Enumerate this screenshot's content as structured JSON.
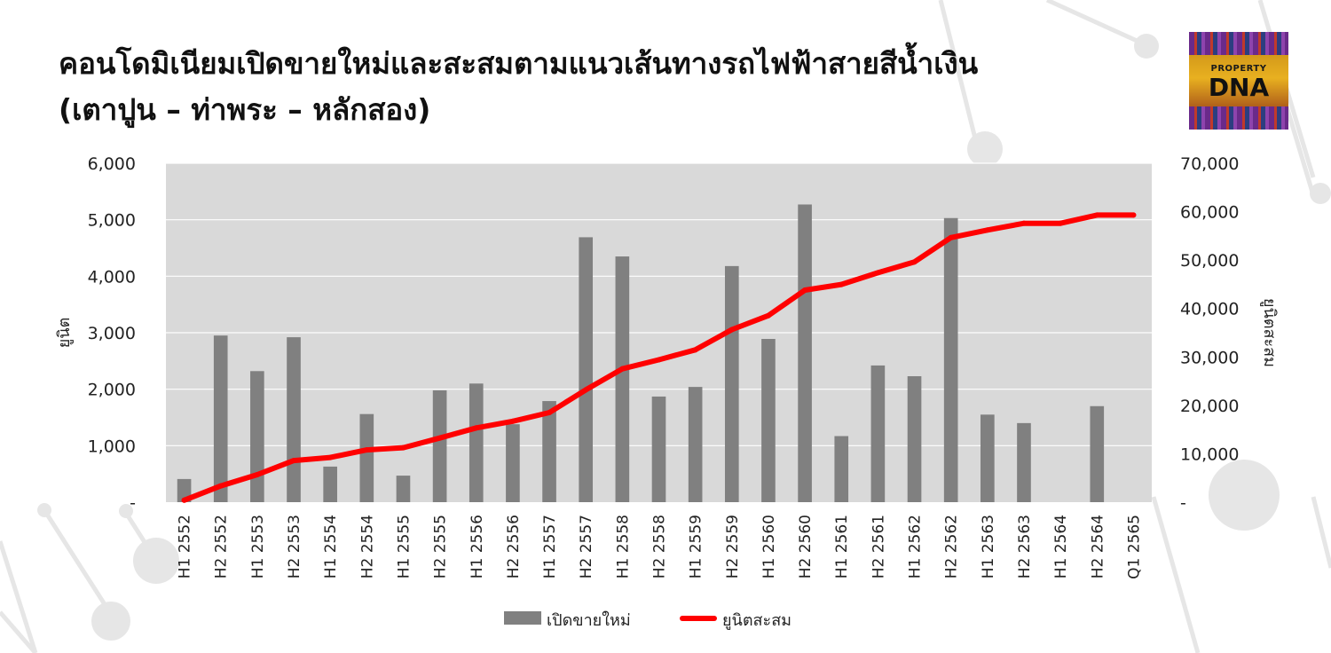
{
  "title": {
    "line1": "คอนโดมิเนียมเปิดขายใหม่และสะสมตามแนวเส้นทางรถไฟฟ้าสายสีน้ำเงิน",
    "line2": "(เตาปูน – ท่าพระ – หลักสอง)"
  },
  "logo": {
    "line1": "PROPERTY",
    "line2": "DNA"
  },
  "colors": {
    "plot_background": "#d9d9d9",
    "bar": "#808080",
    "line": "#ff0000",
    "gridline": "#ffffff",
    "text": "#222222"
  },
  "legend": {
    "bar_label": "เปิดขายใหม่",
    "line_label": "ยูนิตสะสม"
  },
  "chart_data": {
    "type": "bar",
    "combo": "bar+line",
    "categories": [
      "H1 2552",
      "H2 2552",
      "H1 2553",
      "H2 2553",
      "H1 2554",
      "H2 2554",
      "H1 2555",
      "H2 2555",
      "H1 2556",
      "H2 2556",
      "H1 2557",
      "H2 2557",
      "H1 2558",
      "H2 2558",
      "H1 2559",
      "H2 2559",
      "H1 2560",
      "H2 2560",
      "H1 2561",
      "H2 2561",
      "H1 2562",
      "H2 2562",
      "H1 2563",
      "H2 2563",
      "H1 2564",
      "H2 2564",
      "Q1 2565"
    ],
    "series": [
      {
        "name": "เปิดขายใหม่",
        "type": "bar",
        "axis": "left",
        "values": [
          410,
          2950,
          2320,
          2920,
          630,
          1560,
          470,
          1980,
          2100,
          1380,
          1790,
          4690,
          4350,
          1870,
          2040,
          4180,
          2890,
          5270,
          1170,
          2420,
          2230,
          5030,
          1550,
          1400,
          0,
          1700,
          0
        ]
      },
      {
        "name": "ยูนิตสะสม",
        "type": "line",
        "axis": "right",
        "values": [
          410,
          3360,
          5680,
          8600,
          9230,
          10790,
          11260,
          13240,
          15340,
          16720,
          18510,
          23200,
          27550,
          29420,
          31460,
          35640,
          38530,
          43800,
          44970,
          47390,
          49620,
          54650,
          56200,
          57600,
          57600,
          59300,
          59300
        ]
      }
    ],
    "y_left": {
      "label": "ยูนิต",
      "min": 0,
      "max": 6000,
      "step": 1000,
      "tick_labels": [
        "-",
        "1,000",
        "2,000",
        "3,000",
        "4,000",
        "5,000",
        "6,000"
      ]
    },
    "y_right": {
      "label": "ยูนิตสะสม",
      "min": 0,
      "max": 70000,
      "step": 10000,
      "tick_labels": [
        "-",
        "10,000",
        "20,000",
        "30,000",
        "40,000",
        "50,000",
        "60,000",
        "70,000"
      ]
    },
    "grid": true,
    "legend_position": "bottom"
  }
}
